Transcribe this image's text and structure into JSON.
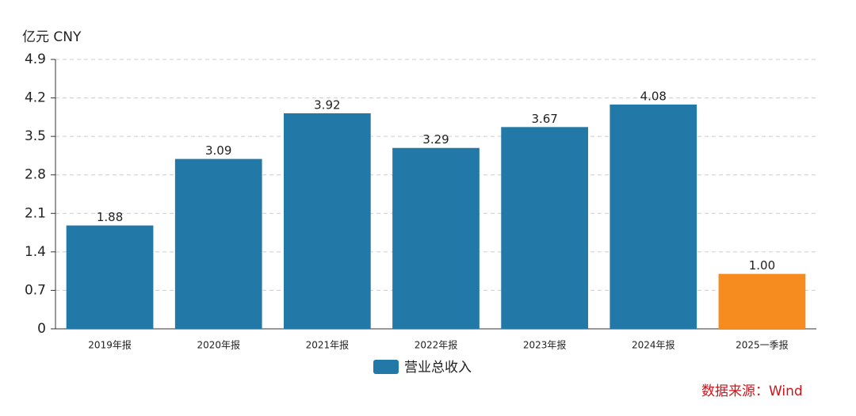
{
  "chart_data": {
    "type": "bar",
    "y_axis_label": "亿元  CNY",
    "categories": [
      "2019年报",
      "2020年报",
      "2021年报",
      "2022年报",
      "2023年报",
      "2024年报",
      "2025一季报"
    ],
    "series": [
      {
        "name": "营业总收入",
        "color": "#2278a6",
        "values": [
          1.88,
          3.09,
          3.92,
          3.29,
          3.67,
          4.08,
          1.0
        ],
        "value_labels": [
          "1.88",
          "3.09",
          "3.92",
          "3.29",
          "3.67",
          "4.08",
          "1.00"
        ],
        "bar_colors": [
          "#2278a6",
          "#2278a6",
          "#2278a6",
          "#2278a6",
          "#2278a6",
          "#2278a6",
          "#f68b1f"
        ]
      }
    ],
    "ylim": [
      0,
      4.9
    ],
    "yticks": [
      0,
      0.7,
      1.4,
      2.1,
      2.8,
      3.5,
      4.2,
      4.9
    ],
    "grid": true,
    "source": "数据来源：Wind"
  }
}
